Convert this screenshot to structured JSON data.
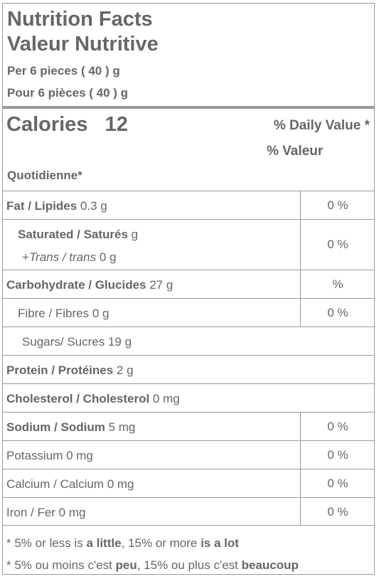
{
  "title_en": "Nutrition Facts",
  "title_fr": "Valeur Nutritive",
  "serving_en": "Per 6 pieces ( 40 ) g",
  "serving_fr": "Pour 6 pièces ( 40 ) g",
  "calories_label": "Calories",
  "calories_value": "12",
  "daily_value_line1": "% Daily Value *",
  "daily_value_line2": "% Valeur",
  "daily_value_line3": "Quotidienne*",
  "rows": {
    "fat": {
      "label_bold": "Fat / Lipides",
      "amount": " 0.3 g",
      "pct": "0 %"
    },
    "saturated": {
      "label_bold": "Saturated / Saturés",
      "amount": " g",
      "trans_prefix": "+",
      "trans_label": "Trans / trans",
      "trans_amount": " 0 g",
      "pct": "0 %"
    },
    "carbohydrate": {
      "label_bold": "Carbohydrate / Glucides",
      "amount": " 27 g",
      "pct": "%"
    },
    "fibre": {
      "label": "Fibre / Fibres 0 g",
      "pct": "0 %"
    },
    "sugars": {
      "label": "Sugars/ Sucres 19 g"
    },
    "protein": {
      "label_bold": "Protein / Protéines",
      "amount": " 2 g"
    },
    "cholesterol": {
      "label_bold": "Cholesterol / Cholesterol",
      "amount": " 0 mg"
    },
    "sodium": {
      "label_bold": "Sodium / Sodium",
      "amount": " 5 mg",
      "pct": "0 %"
    },
    "potassium": {
      "label": "Potassium 0 mg",
      "pct": "0 %"
    },
    "calcium": {
      "label": "Calcium / Calcium 0 mg",
      "pct": "0 %"
    },
    "iron": {
      "label": "Iron / Fer 0 mg",
      "pct": "0 %"
    }
  },
  "footnote_en": {
    "pre": "* 5% or less is ",
    "b1": "a little",
    "mid": ", 15% or more ",
    "b2": "is a lot"
  },
  "footnote_fr": {
    "pre": "* 5% ou moins c'est ",
    "b1": "peu",
    "mid": ", 15% ou plus c'est ",
    "b2": "beaucoup"
  },
  "colors": {
    "text": "#666666",
    "border": "#9a9a9a",
    "background": "#ffffff"
  }
}
